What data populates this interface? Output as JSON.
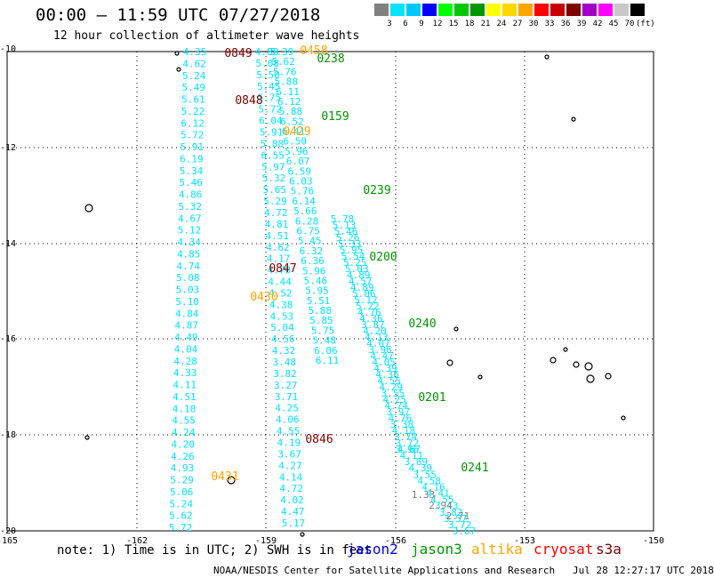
{
  "header": {
    "title": "00:00 — 11:59 UTC 07/27/2018",
    "subtitle": "12 hour collection of altimeter wave heights"
  },
  "colorbar": {
    "unit": "(ft)",
    "swatches": [
      {
        "color": "#808080",
        "label": "3"
      },
      {
        "color": "#00e4ff",
        "label": "6"
      },
      {
        "color": "#00c8ff",
        "label": "9"
      },
      {
        "color": "#0000ff",
        "label": "12"
      },
      {
        "color": "#00ff00",
        "label": "15"
      },
      {
        "color": "#00c800",
        "label": "18"
      },
      {
        "color": "#009600",
        "label": "21"
      },
      {
        "color": "#ffff00",
        "label": "24"
      },
      {
        "color": "#ffd700",
        "label": "27"
      },
      {
        "color": "#ffa500",
        "label": "30"
      },
      {
        "color": "#ff0000",
        "label": "33"
      },
      {
        "color": "#c80000",
        "label": "36"
      },
      {
        "color": "#800000",
        "label": "39"
      },
      {
        "color": "#a000c8",
        "label": "42"
      },
      {
        "color": "#ff00ff",
        "label": "45"
      },
      {
        "color": "#c8c8c8",
        "label": "70"
      },
      {
        "color": "#000000",
        "label": ""
      }
    ]
  },
  "axes": {
    "lat_labels": [
      "-10",
      "-12",
      "-14",
      "-16",
      "-18",
      "-20"
    ],
    "lon_labels": [
      "-165",
      "-162",
      "-159",
      "-156",
      "-153",
      "-150"
    ]
  },
  "tracks": [
    {
      "satellite": "jason2",
      "color": "#00e4ff",
      "start": [
        219,
        58
      ],
      "end": [
        203,
        593
      ],
      "values": [
        "4.35",
        "4.62",
        "5.24",
        "5.49",
        "5.61",
        "5.22",
        "6.12",
        "5.72",
        "5.91",
        "6.19",
        "5.34",
        "5.46",
        "4.86",
        "5.32",
        "4.67",
        "5.12",
        "4.34",
        "4.85",
        "4.74",
        "5.08",
        "5.03",
        "5.10",
        "4.84",
        "4.87",
        "4.49",
        "4.04",
        "4.28",
        "4.33",
        "4.11",
        "4.51",
        "4.10",
        "4.55",
        "4.24",
        "4.20",
        "4.26",
        "4.93",
        "5.29",
        "5.06",
        "5.24",
        "5.62",
        "5.72"
      ]
    },
    {
      "satellite": "jason2",
      "color": "#00e4ff",
      "start": [
        300,
        58
      ],
      "end": [
        330,
        588
      ],
      "values": [
        "4.88",
        "5.08",
        "5.50",
        "5.45",
        "5.75",
        "5.72",
        "6.04",
        "5.91",
        "5.88",
        "6.55",
        "5.97",
        "5.32",
        "5.65",
        "5.29",
        "4.72",
        "4.81",
        "4.51",
        "4.62",
        "4.17",
        "4.70",
        "4.44",
        "4.52",
        "4.38",
        "4.53",
        "5.04",
        "4.56",
        "4.32",
        "3.48",
        "3.82",
        "3.27",
        "3.71",
        "4.25",
        "4.06",
        "4.55",
        "4.19",
        "3.67",
        "4.27",
        "4.14",
        "4.72",
        "4.02",
        "4.47",
        "5.17"
      ]
    },
    {
      "satellite": "jason2",
      "color": "#00e4ff",
      "start": [
        317,
        58
      ],
      "end": [
        368,
        405
      ],
      "values": [
        "5.39",
        "5.62",
        "5.76",
        "5.88",
        "6.11",
        "6.12",
        "5.88",
        "6.52",
        "6.41",
        "6.50",
        "5.96",
        "6.07",
        "6.59",
        "6.03",
        "5.76",
        "6.14",
        "5.66",
        "6.28",
        "6.75",
        "5.45",
        "6.32",
        "6.36",
        "5.96",
        "5.46",
        "5.95",
        "5.51",
        "5.88",
        "5.85",
        "5.75",
        "5.48",
        "6.06",
        "6.11"
      ]
    },
    {
      "satellite": "jason2",
      "color": "#00e4ff",
      "start": [
        385,
        246
      ],
      "end": [
        460,
        505
      ],
      "values": [
        "5.78",
        "5.13",
        "5.46",
        "5.26",
        "5.33",
        "5.95",
        "5.54",
        "5.25",
        "5.03",
        "4.89",
        "4.57",
        "4.89",
        "5.06",
        "5.12",
        "5.22",
        "4.76",
        "4.36",
        "3.87",
        "4.20",
        "4.13",
        "4.07",
        "3.96",
        "4.47",
        "4.05",
        "4.39",
        "4.36",
        "4.55",
        "4.29",
        "3.55",
        "4.25",
        "4.74",
        "3.97",
        "4.76",
        "3.38",
        "4.18",
        "3.74",
        "3.72",
        "4.67"
      ]
    },
    {
      "satellite": "jason2",
      "color": "#00e4ff",
      "start": [
        458,
        505
      ],
      "end": [
        522,
        597
      ],
      "values": [
        "3.96",
        "4.11",
        "3.89",
        "4.39",
        "3.55",
        "4.58",
        "4.16",
        "4.41",
        "4.55",
        "3.43",
        "3.82",
        "3.57",
        "3.72",
        "3.67"
      ]
    },
    {
      "satellite": "jason2",
      "color": "#808080",
      "start": [
        476,
        556
      ],
      "end": [
        515,
        580
      ],
      "values": [
        "1.33",
        "2.94",
        "2.71"
      ]
    }
  ],
  "time_labels": [
    {
      "text": "0849",
      "color": "#800000"
    },
    {
      "text": "0458",
      "color": "#ffa500"
    },
    {
      "text": "0238",
      "color": "#009600"
    },
    {
      "text": "0848",
      "color": "#800000"
    },
    {
      "text": "0159",
      "color": "#009600"
    },
    {
      "text": "0429",
      "color": "#ffa500"
    },
    {
      "text": "0239",
      "color": "#009600"
    },
    {
      "text": "0200",
      "color": "#009600"
    },
    {
      "text": "0847",
      "color": "#800000"
    },
    {
      "text": "0430",
      "color": "#ffa500"
    },
    {
      "text": "0240",
      "color": "#009600"
    },
    {
      "text": "0201",
      "color": "#009600"
    },
    {
      "text": "0846",
      "color": "#800000"
    },
    {
      "text": "0241",
      "color": "#009600"
    },
    {
      "text": "0431",
      "color": "#ffa500"
    }
  ],
  "footer": {
    "note": "note: 1) Time is in UTC; 2) SWH is in feet",
    "legend": [
      {
        "name": "jason2",
        "color": "#0000ff"
      },
      {
        "name": "jason3",
        "color": "#009600"
      },
      {
        "name": "altika",
        "color": "#ffa500"
      },
      {
        "name": "cryosat",
        "color": "#ff0000"
      },
      {
        "name": "s3a",
        "color": "#800000"
      }
    ],
    "credit": "NOAA/NESDIS Center for Satellite Applications and Research",
    "timestamp": "Jul 28 12:27:17 UTC 2018"
  }
}
